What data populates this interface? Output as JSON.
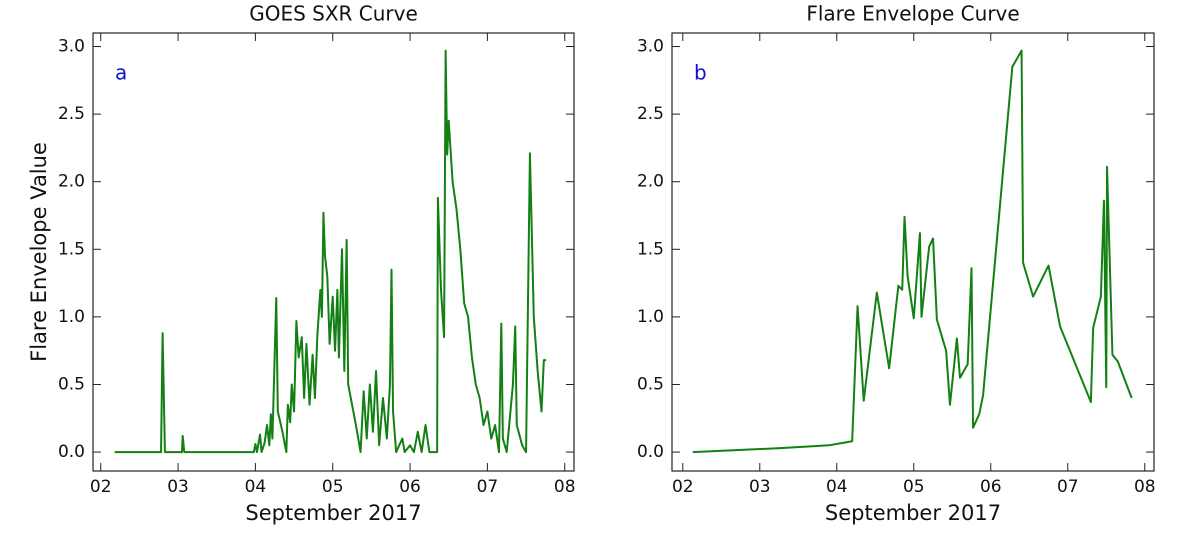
{
  "chart_data": [
    {
      "type": "line",
      "title": "GOES SXR Curve",
      "annotation": "a",
      "annotation_color": "#1010d0",
      "x_label": "September 2017",
      "y_label": "Flare Envelope Value",
      "xlim": [
        1.9,
        8.12
      ],
      "ylim": [
        -0.14,
        3.1
      ],
      "xticks": [
        {
          "value": 2,
          "label": "02"
        },
        {
          "value": 3,
          "label": "03"
        },
        {
          "value": 4,
          "label": "04"
        },
        {
          "value": 5,
          "label": "05"
        },
        {
          "value": 6,
          "label": "06"
        },
        {
          "value": 7,
          "label": "07"
        },
        {
          "value": 8,
          "label": "08"
        }
      ],
      "yticks": [
        {
          "value": 0,
          "label": "0.0"
        },
        0.5,
        {
          "value": 1,
          "label": "1.0"
        },
        1.5,
        {
          "value": 2,
          "label": "2.0"
        },
        2.5,
        {
          "value": 3,
          "label": "3.0"
        }
      ],
      "series": [
        {
          "color": "#138013",
          "x": [
            2.18,
            2.78,
            2.8,
            2.83,
            3.05,
            3.06,
            3.08,
            3.98,
            4.0,
            4.02,
            4.06,
            4.08,
            4.12,
            4.15,
            4.18,
            4.2,
            4.22,
            4.27,
            4.29,
            4.35,
            4.4,
            4.42,
            4.45,
            4.47,
            4.5,
            4.53,
            4.56,
            4.6,
            4.63,
            4.66,
            4.7,
            4.74,
            4.77,
            4.8,
            4.84,
            4.86,
            4.88,
            4.9,
            4.93,
            4.96,
            5.0,
            5.03,
            5.06,
            5.08,
            5.12,
            5.15,
            5.18,
            5.2,
            5.25,
            5.3,
            5.36,
            5.4,
            5.44,
            5.48,
            5.52,
            5.56,
            5.6,
            5.65,
            5.7,
            5.74,
            5.76,
            5.78,
            5.82,
            5.9,
            5.93,
            6.0,
            6.05,
            6.1,
            6.15,
            6.2,
            6.25,
            6.35,
            6.36,
            6.4,
            6.44,
            6.46,
            6.48,
            6.5,
            6.55,
            6.6,
            6.65,
            6.7,
            6.75,
            6.8,
            6.85,
            6.9,
            6.95,
            7.0,
            7.05,
            7.1,
            7.15,
            7.18,
            7.2,
            7.25,
            7.33,
            7.36,
            7.38,
            7.45,
            7.5,
            7.55,
            7.6,
            7.65,
            7.7,
            7.73,
            7.76
          ],
          "values": [
            0,
            0,
            0.88,
            0,
            0,
            0.12,
            0,
            0,
            0.06,
            0,
            0.13,
            0,
            0.07,
            0.2,
            0.05,
            0.28,
            0.1,
            1.14,
            0.3,
            0.15,
            0.0,
            0.35,
            0.22,
            0.5,
            0.3,
            0.97,
            0.7,
            0.85,
            0.4,
            0.8,
            0.35,
            0.72,
            0.4,
            0.85,
            1.2,
            1.0,
            1.77,
            1.45,
            1.3,
            0.8,
            1.15,
            0.75,
            1.2,
            0.7,
            1.5,
            0.6,
            1.57,
            0.5,
            0.35,
            0.2,
            0.0,
            0.45,
            0.1,
            0.5,
            0.15,
            0.6,
            0.05,
            0.4,
            0.1,
            0.5,
            1.35,
            0.3,
            0.0,
            0.1,
            0.0,
            0.05,
            0.0,
            0.15,
            0.0,
            0.2,
            0.0,
            0.0,
            1.88,
            1.2,
            0.85,
            2.97,
            2.2,
            2.45,
            2.0,
            1.8,
            1.5,
            1.1,
            1.0,
            0.7,
            0.5,
            0.4,
            0.2,
            0.3,
            0.1,
            0.2,
            0.0,
            0.95,
            0.1,
            0.0,
            0.5,
            0.93,
            0.2,
            0.05,
            0.0,
            2.21,
            1.0,
            0.6,
            0.3,
            0.68,
            0.68
          ]
        }
      ]
    },
    {
      "type": "line",
      "title": "Flare Envelope Curve",
      "annotation": "b",
      "annotation_color": "#1010d0",
      "x_label": "September 2017",
      "xlim": [
        1.86,
        8.12
      ],
      "ylim": [
        -0.14,
        3.1
      ],
      "xticks": [
        {
          "value": 2,
          "label": "02"
        },
        {
          "value": 3,
          "label": "03"
        },
        {
          "value": 4,
          "label": "04"
        },
        {
          "value": 5,
          "label": "05"
        },
        {
          "value": 6,
          "label": "06"
        },
        {
          "value": 7,
          "label": "07"
        },
        {
          "value": 8,
          "label": "08"
        }
      ],
      "yticks": [
        {
          "value": 0,
          "label": "0.0"
        },
        0.5,
        {
          "value": 1,
          "label": "1.0"
        },
        1.5,
        {
          "value": 2,
          "label": "2.0"
        },
        2.5,
        {
          "value": 3,
          "label": "3.0"
        }
      ],
      "series": [
        {
          "color": "#138013",
          "x": [
            2.13,
            3.3,
            3.9,
            4.2,
            4.27,
            4.35,
            4.52,
            4.68,
            4.8,
            4.85,
            4.88,
            4.92,
            5.0,
            5.08,
            5.1,
            5.2,
            5.25,
            5.3,
            5.42,
            5.47,
            5.56,
            5.6,
            5.7,
            5.75,
            5.77,
            5.85,
            5.9,
            6.28,
            6.4,
            6.42,
            6.55,
            6.75,
            6.9,
            7.3,
            7.33,
            7.43,
            7.47,
            7.5,
            7.51,
            7.58,
            7.65,
            7.83
          ],
          "values": [
            0,
            0.03,
            0.05,
            0.08,
            1.08,
            0.38,
            1.18,
            0.62,
            1.23,
            1.2,
            1.74,
            1.3,
            0.99,
            1.62,
            1.0,
            1.52,
            1.58,
            0.98,
            0.75,
            0.35,
            0.84,
            0.55,
            0.65,
            1.36,
            0.18,
            0.28,
            0.42,
            2.85,
            2.97,
            1.4,
            1.15,
            1.38,
            0.93,
            0.37,
            0.92,
            1.15,
            1.86,
            0.48,
            2.11,
            0.72,
            0.67,
            0.4
          ]
        }
      ]
    }
  ]
}
